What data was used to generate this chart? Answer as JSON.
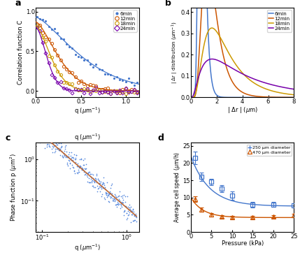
{
  "panel_a": {
    "colors": [
      "#4477cc",
      "#cc5500",
      "#cc9900",
      "#7700aa"
    ],
    "labels": [
      "6min",
      "12min",
      "18min",
      "24min"
    ],
    "fit_params": [
      {
        "A": 0.93,
        "tau": 0.62,
        "beta": 1.4
      },
      {
        "A": 0.87,
        "tau": 0.32,
        "beta": 1.5
      },
      {
        "A": 0.82,
        "tau": 0.22,
        "beta": 1.6
      },
      {
        "A": 0.8,
        "tau": 0.16,
        "beta": 1.7
      }
    ],
    "xlim": [
      0,
      1.15
    ],
    "ylim": [
      -0.08,
      1.05
    ],
    "xticks": [
      0,
      0.5,
      1.0
    ],
    "yticks": [
      0,
      0.5,
      1
    ]
  },
  "panel_b": {
    "colors": [
      "#4477cc",
      "#cc5500",
      "#cc9900",
      "#7700aa"
    ],
    "labels": [
      "6min",
      "12min",
      "18min",
      "24min"
    ],
    "dist_params": [
      {
        "mu": 0.85,
        "sigma": 0.3
      },
      {
        "mu": 1.55,
        "sigma": 0.45
      },
      {
        "mu": 2.4,
        "sigma": 0.62
      },
      {
        "mu": 3.7,
        "sigma": 0.9
      }
    ],
    "xlim": [
      0,
      8
    ],
    "ylim": [
      0,
      0.42
    ],
    "xticks": [
      0,
      2,
      4,
      6,
      8
    ],
    "yticks": [
      0,
      0.1,
      0.2,
      0.3,
      0.4
    ]
  },
  "panel_c": {
    "scatter_color": "#5588dd",
    "fit_color": "#bb6633",
    "slope": -1.75,
    "intercept": 0.068,
    "noise_std": 0.12,
    "xlim": [
      0.085,
      1.4
    ],
    "ylim": [
      0.018,
      2.5
    ]
  },
  "panel_d": {
    "xlim": [
      0,
      25
    ],
    "ylim": [
      0,
      26
    ],
    "xticks": [
      0,
      5,
      10,
      15,
      20,
      25
    ],
    "yticks": [
      0,
      5,
      10,
      15,
      20,
      25
    ],
    "series": [
      {
        "label": "250 μm diameter",
        "color": "#4477cc",
        "marker": "s",
        "x": [
          1,
          2.5,
          5,
          7.5,
          10,
          15,
          20,
          25
        ],
        "y": [
          21.5,
          16.0,
          14.5,
          12.5,
          10.5,
          8.0,
          8.0,
          7.8
        ],
        "yerr": [
          1.8,
          1.2,
          1.0,
          1.0,
          1.2,
          0.8,
          0.7,
          0.6
        ]
      },
      {
        "label": "470 μm diameter",
        "color": "#cc5500",
        "marker": "^",
        "x": [
          1,
          2.5,
          5,
          7.5,
          10,
          15,
          20,
          25
        ],
        "y": [
          9.5,
          6.5,
          5.0,
          4.5,
          4.2,
          4.2,
          4.5,
          4.8
        ],
        "yerr": [
          0.8,
          0.7,
          0.5,
          0.4,
          0.4,
          0.4,
          0.4,
          0.5
        ]
      }
    ],
    "fit_params": [
      {
        "a": 7.5,
        "b": 14.5,
        "c": 4.5
      },
      {
        "a": 4.2,
        "b": 5.8,
        "c": 3.0
      }
    ]
  }
}
